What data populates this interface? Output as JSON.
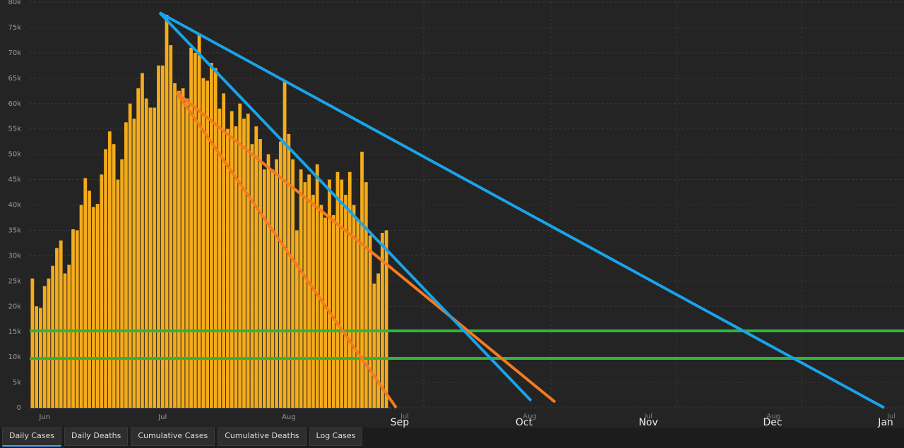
{
  "chart_data": {
    "type": "bar",
    "color": "#f5ac1b",
    "grid": true,
    "categories": [
      null,
      null,
      null,
      "Jun",
      null,
      null,
      null,
      null,
      null,
      null,
      null,
      null,
      null,
      null,
      null,
      null,
      null,
      null,
      null,
      null,
      null,
      null,
      null,
      null,
      null,
      null,
      null,
      null,
      null,
      null,
      null,
      null,
      "Jul",
      null,
      null,
      null,
      null,
      null,
      null,
      null,
      null,
      null,
      null,
      null,
      null,
      null,
      null,
      null,
      null,
      null,
      null,
      null,
      null,
      null,
      null,
      null,
      null,
      null,
      null,
      null,
      null,
      null,
      null,
      "Aug",
      null,
      null,
      null,
      null,
      null,
      null,
      null,
      null,
      null,
      null,
      null,
      null,
      null,
      null,
      null,
      null,
      null,
      null,
      null,
      null,
      null,
      null,
      null,
      null
    ],
    "values": [
      25500,
      20000,
      19700,
      24000,
      25500,
      28000,
      31500,
      33000,
      26500,
      28200,
      35200,
      35000,
      40000,
      45300,
      42800,
      39600,
      40200,
      46000,
      51000,
      54500,
      52000,
      45000,
      49000,
      56300,
      60000,
      57000,
      63000,
      66000,
      61000,
      59200,
      59200,
      67500,
      67500,
      77500,
      71500,
      64000,
      62500,
      63000,
      61000,
      71000,
      70000,
      73800,
      65000,
      64500,
      68000,
      67000,
      59000,
      62000,
      55000,
      58500,
      55500,
      60000,
      57000,
      58000,
      52000,
      55500,
      53000,
      47000,
      50000,
      47000,
      49000,
      52500,
      64500,
      54000,
      49000,
      35000,
      47000,
      44500,
      46000,
      42000,
      48000,
      40000,
      37500,
      45000,
      38000,
      46500,
      45000,
      42000,
      46500,
      40000,
      37000,
      50500,
      44500,
      34000,
      24500,
      26500,
      34500,
      35000
    ],
    "ylim": [
      0,
      80000
    ],
    "yticks": [
      0,
      {
        "value": 5000,
        "label": "5k"
      },
      {
        "value": 10000,
        "label": "10k"
      },
      {
        "value": 15000,
        "label": "15k"
      },
      {
        "value": 20000,
        "label": "20k"
      },
      {
        "value": 25000,
        "label": "25k"
      },
      {
        "value": 30000,
        "label": "30k"
      },
      {
        "value": 35000,
        "label": "35k"
      },
      {
        "value": 40000,
        "label": "40k"
      },
      {
        "value": 45000,
        "label": "45k"
      },
      {
        "value": 50000,
        "label": "50k"
      },
      {
        "value": 55000,
        "label": "55k"
      },
      {
        "value": 60000,
        "label": "60k"
      },
      {
        "value": 65000,
        "label": "65k"
      },
      {
        "value": 70000,
        "label": "70k"
      },
      {
        "value": 75000,
        "label": "75k"
      },
      {
        "value": 80000,
        "label": "80k"
      }
    ],
    "overlay_labels": [
      "Jul",
      "Aug",
      "Jul",
      "Aug",
      "Jul"
    ],
    "annotation_labels": [
      "Sep",
      "Oct",
      "Nov",
      "Dec",
      "Jan"
    ]
  },
  "tabs": [
    "Daily Cases",
    "Daily Deaths",
    "Cumulative Cases",
    "Cumulative Deaths",
    "Log Cases"
  ]
}
